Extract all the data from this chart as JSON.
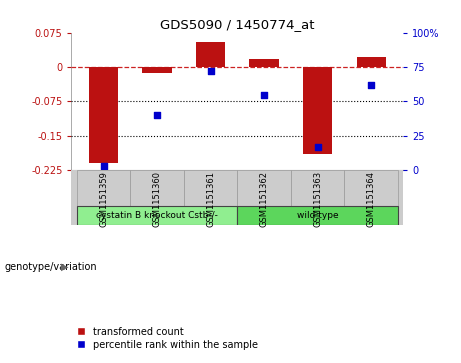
{
  "title": "GDS5090 / 1450774_at",
  "samples": [
    "GSM1151359",
    "GSM1151360",
    "GSM1151361",
    "GSM1151362",
    "GSM1151363",
    "GSM1151364"
  ],
  "transformed_count": [
    -0.21,
    -0.012,
    0.055,
    0.018,
    -0.19,
    0.022
  ],
  "percentile_rank": [
    3,
    40,
    72,
    55,
    17,
    62
  ],
  "groups": [
    {
      "label": "cystatin B knockout Cstb-/-",
      "samples": [
        0,
        1,
        2
      ],
      "color": "#90ee90"
    },
    {
      "label": "wild type",
      "samples": [
        3,
        4,
        5
      ],
      "color": "#5cd65c"
    }
  ],
  "group_label": "genotype/variation",
  "left_ylim": [
    -0.225,
    0.075
  ],
  "left_yticks": [
    -0.225,
    -0.15,
    -0.075,
    0,
    0.075
  ],
  "right_ylim": [
    0,
    100
  ],
  "right_yticks": [
    0,
    25,
    50,
    75,
    100
  ],
  "right_yticklabels": [
    "0",
    "25",
    "50",
    "75",
    "100%"
  ],
  "bar_color": "#bb1111",
  "dot_color": "#0000cc",
  "bar_width": 0.55,
  "legend_labels": [
    "transformed count",
    "percentile rank within the sample"
  ],
  "legend_colors": [
    "#bb1111",
    "#0000cc"
  ],
  "hline_y": 0,
  "dotted_lines": [
    -0.075,
    -0.15
  ],
  "background_color": "#ffffff",
  "plot_bg": "#ffffff",
  "gray_color": "#cccccc"
}
